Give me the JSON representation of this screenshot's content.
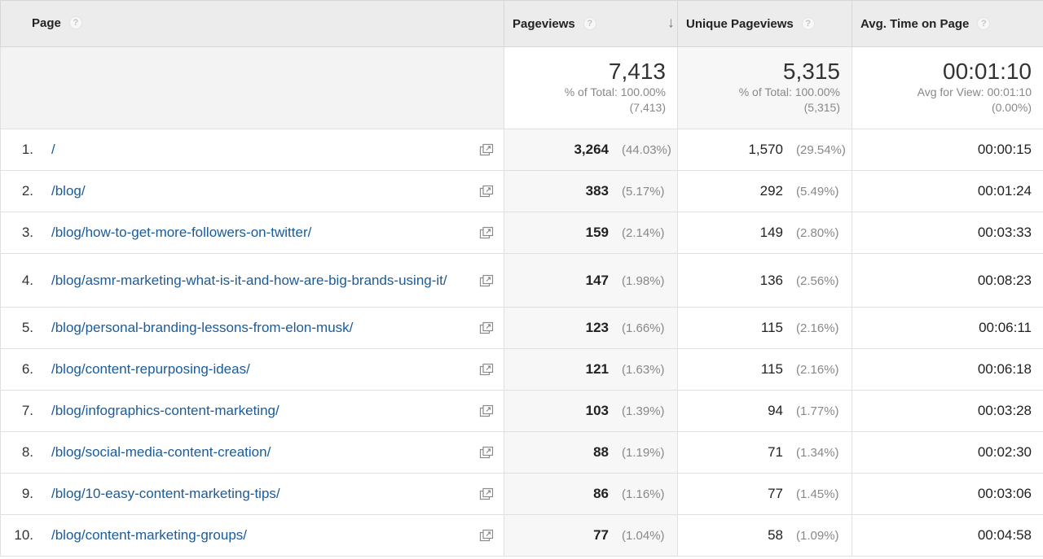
{
  "header": {
    "page": "Page",
    "pageviews": "Pageviews",
    "unique_pageviews": "Unique Pageviews",
    "avg_time": "Avg. Time on Page",
    "help_glyph": "?",
    "sort_glyph": "↓"
  },
  "totals": {
    "pageviews": {
      "main": "7,413",
      "sub1": "% of Total: 100.00%",
      "sub2": "(7,413)"
    },
    "unique_pageviews": {
      "main": "5,315",
      "sub1": "% of Total: 100.00%",
      "sub2": "(5,315)"
    },
    "avg_time": {
      "main": "00:01:10",
      "sub1": "Avg for View: 00:01:10",
      "sub2": "(0.00%)"
    }
  },
  "rows": [
    {
      "index": "1.",
      "page": "/",
      "pageviews": "3,264",
      "pv_pct": "(44.03%)",
      "unique": "1,570",
      "u_pct": "(29.54%)",
      "avg": "00:00:15"
    },
    {
      "index": "2.",
      "page": "/blog/",
      "pageviews": "383",
      "pv_pct": "(5.17%)",
      "unique": "292",
      "u_pct": "(5.49%)",
      "avg": "00:01:24"
    },
    {
      "index": "3.",
      "page": "/blog/how-to-get-more-followers-on-twitter/",
      "pageviews": "159",
      "pv_pct": "(2.14%)",
      "unique": "149",
      "u_pct": "(2.80%)",
      "avg": "00:03:33"
    },
    {
      "index": "4.",
      "page": "/blog/asmr-marketing-what-is-it-and-how-are-big-brands-using-it/",
      "pageviews": "147",
      "pv_pct": "(1.98%)",
      "unique": "136",
      "u_pct": "(2.56%)",
      "avg": "00:08:23"
    },
    {
      "index": "5.",
      "page": "/blog/personal-branding-lessons-from-elon-musk/",
      "pageviews": "123",
      "pv_pct": "(1.66%)",
      "unique": "115",
      "u_pct": "(2.16%)",
      "avg": "00:06:11"
    },
    {
      "index": "6.",
      "page": "/blog/content-repurposing-ideas/",
      "pageviews": "121",
      "pv_pct": "(1.63%)",
      "unique": "115",
      "u_pct": "(2.16%)",
      "avg": "00:06:18"
    },
    {
      "index": "7.",
      "page": "/blog/infographics-content-marketing/",
      "pageviews": "103",
      "pv_pct": "(1.39%)",
      "unique": "94",
      "u_pct": "(1.77%)",
      "avg": "00:03:28"
    },
    {
      "index": "8.",
      "page": "/blog/social-media-content-creation/",
      "pageviews": "88",
      "pv_pct": "(1.19%)",
      "unique": "71",
      "u_pct": "(1.34%)",
      "avg": "00:02:30"
    },
    {
      "index": "9.",
      "page": "/blog/10-easy-content-marketing-tips/",
      "pageviews": "86",
      "pv_pct": "(1.16%)",
      "unique": "77",
      "u_pct": "(1.45%)",
      "avg": "00:03:06"
    },
    {
      "index": "10.",
      "page": "/blog/content-marketing-groups/",
      "pageviews": "77",
      "pv_pct": "(1.04%)",
      "unique": "58",
      "u_pct": "(1.09%)",
      "avg": "00:04:58"
    }
  ]
}
